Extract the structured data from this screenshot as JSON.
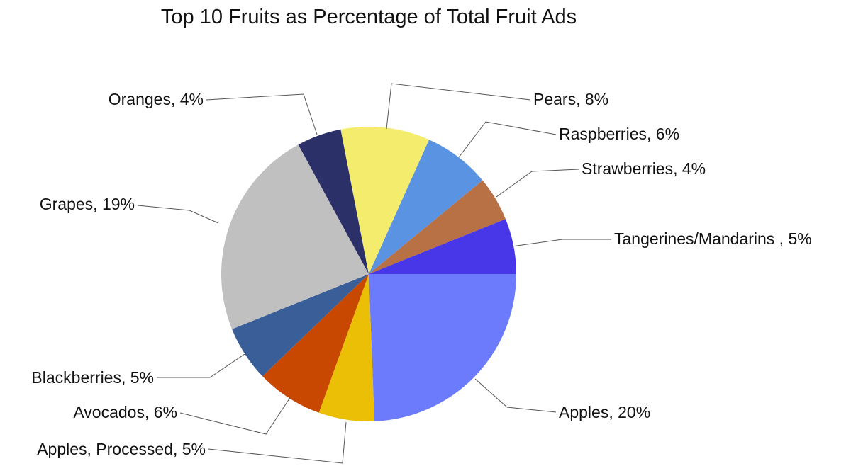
{
  "chart_data": {
    "type": "pie",
    "title": "Top 10 Fruits as Percentage of Total Fruit Ads",
    "start": "3 o'clock, clockwise",
    "slices": [
      {
        "label": "Apples, 20%",
        "value": 20,
        "color": "#6b7bfb"
      },
      {
        "label": "Apples, Processed, 5%",
        "value": 5,
        "color": "#ebbf05"
      },
      {
        "label": "Avocados, 6%",
        "value": 6,
        "color": "#c84802"
      },
      {
        "label": "Blackberries, 5%",
        "value": 5,
        "color": "#3a5f98"
      },
      {
        "label": "Grapes, 19%",
        "value": 19,
        "color": "#c0c0c0"
      },
      {
        "label": "Oranges, 4%",
        "value": 4,
        "color": "#2b3068"
      },
      {
        "label": "Pears, 8%",
        "value": 8,
        "color": "#f4ec6c"
      },
      {
        "label": "Raspberries, 6%",
        "value": 6,
        "color": "#5b93e3"
      },
      {
        "label": "Strawberries, 4%",
        "value": 4,
        "color": "#b87045"
      },
      {
        "label": "Tangerines/Mandarins , 5%",
        "value": 5,
        "color": "#4737e9"
      }
    ]
  }
}
